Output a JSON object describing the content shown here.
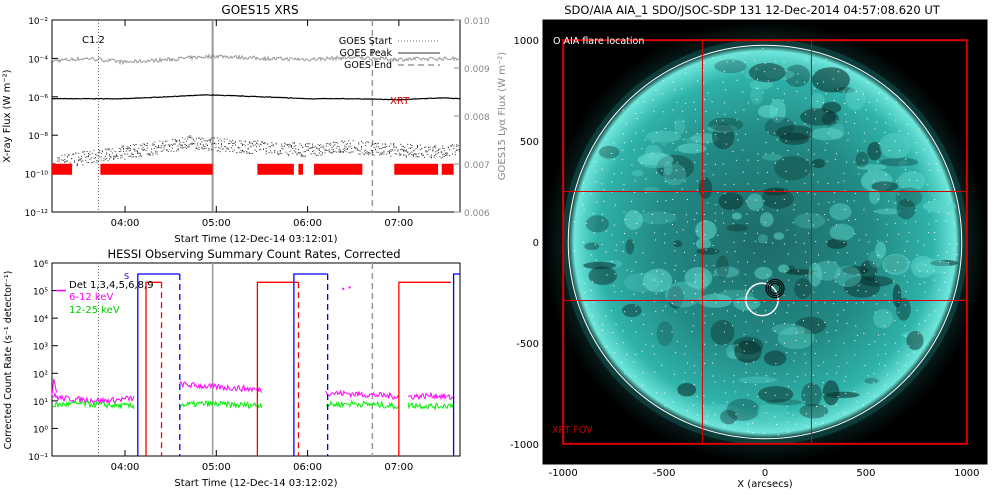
{
  "goes_panel": {
    "title": "GOES15 XRS",
    "y_label_left": "X-ray Flux (W m⁻²)",
    "y_label_right": "GOES15 Lyα Flux (W m⁻²)",
    "x_label": "Start Time (12-Dec-14 03:12:01)",
    "class_label": "C1.2",
    "legend": [
      "GOES Start",
      "GOES Peak",
      "GOES End"
    ],
    "xrt_label": "XRT"
  },
  "hessi_panel": {
    "title": "HESSI Observing Summary Count Rates, Corrected",
    "y_label": "Corrected Count Rate (s⁻¹ detector⁻¹)",
    "x_label": "Start Time (12-Dec-14 03:12:02)",
    "det_label": "Det 1,3,4,5,6,8,9",
    "legend": [
      "6-12 keV",
      "12-25 keV"
    ],
    "marker_s": "S"
  },
  "aia_panel": {
    "title": "SDO/AIA AIA_1 SDO/JSOC-SDP 131 12-Dec-2014 04:57:08.620 UT",
    "flare_legend": "O AIA flare location",
    "xrt_fov": "XRT FOV",
    "x_label": "X (arcsecs)"
  },
  "chart_data": [
    {
      "type": "line",
      "id": "goes",
      "x_ticks": [
        "04:00",
        "05:00",
        "06:00",
        "07:00"
      ],
      "x_tick_hours": [
        4,
        5,
        6,
        7
      ],
      "xlim_hours": [
        3.2,
        7.67
      ],
      "y_ticks": [
        "10⁻²",
        "10⁻⁴",
        "10⁻⁶",
        "10⁻⁸",
        "10⁻¹⁰",
        "10⁻¹²"
      ],
      "ylim_log": [
        -12,
        -2
      ],
      "y2_ticks": [
        "0.010",
        "0.009",
        "0.008",
        "0.007",
        "0.006"
      ],
      "y2lim": [
        0.006,
        0.01
      ],
      "series": [
        {
          "name": "",
          "color": "#000000",
          "x": [
            3.2,
            4.0,
            4.9,
            5.5,
            6.0,
            6.5,
            7.0,
            7.5,
            7.67
          ],
          "log_y": [
            -6.1,
            -6.1,
            -5.9,
            -6.0,
            -6.1,
            -6.1,
            -6.15,
            -6.05,
            -6.1
          ]
        },
        {
          "name": "",
          "color": "#999999",
          "axis": "right",
          "x": [
            3.2,
            3.6,
            4.0,
            4.5,
            5.0,
            5.5,
            6.0,
            6.5,
            7.0,
            7.67
          ],
          "y": [
            0.00915,
            0.0092,
            0.00912,
            0.00918,
            0.00925,
            0.0092,
            0.00918,
            0.00922,
            0.00918,
            0.0092
          ]
        },
        {
          "name": "",
          "color": "#333333",
          "x": [
            3.2,
            3.7,
            4.2,
            4.7,
            5.2,
            5.6,
            6.0,
            6.4,
            6.9,
            7.4,
            7.67
          ],
          "log_y": [
            -9.1,
            -8.7,
            -8.4,
            -8.0,
            -8.2,
            -8.3,
            -8.4,
            -8.2,
            -8.4,
            -8.5,
            -8.4
          ]
        }
      ],
      "goes_start_hour": 3.71,
      "goes_peak_hour": 4.96,
      "goes_end_hour": 6.71,
      "xrt_intervals": [
        [
          3.2,
          3.42
        ],
        [
          3.73,
          4.96
        ],
        [
          5.45,
          5.85
        ],
        [
          5.9,
          5.95
        ],
        [
          6.07,
          6.6
        ],
        [
          6.95,
          7.43
        ],
        [
          7.47,
          7.6
        ]
      ],
      "xrt_log_y": -9.8
    },
    {
      "type": "line",
      "id": "hessi",
      "x_ticks": [
        "04:00",
        "05:00",
        "06:00",
        "07:00"
      ],
      "x_tick_hours": [
        4,
        5,
        6,
        7
      ],
      "xlim_hours": [
        3.2,
        7.67
      ],
      "y_ticks": [
        "10⁶",
        "10⁵",
        "10⁴",
        "10³",
        "10²",
        "10¹",
        "10⁰",
        "10⁻¹"
      ],
      "ylim_log": [
        -1,
        6
      ],
      "series": [
        {
          "name": "6-12 keV",
          "color": "#ff00ff",
          "segments": [
            {
              "x": [
                3.2,
                3.3,
                3.5,
                3.8,
                4.1
              ],
              "log_y": [
                1.2,
                1.1,
                1.05,
                1.0,
                1.1
              ]
            },
            {
              "x": [
                4.6,
                4.8,
                5.0,
                5.3,
                5.5
              ],
              "log_y": [
                1.6,
                1.55,
                1.5,
                1.45,
                1.4
              ]
            },
            {
              "x": [
                6.2,
                6.5,
                6.8,
                7.0
              ],
              "log_y": [
                1.3,
                1.25,
                1.2,
                1.15
              ]
            },
            {
              "x": [
                7.1,
                7.4,
                7.6
              ],
              "log_y": [
                1.15,
                1.2,
                1.1
              ]
            }
          ]
        },
        {
          "name": "12-25 keV",
          "color": "#00ee00",
          "segments": [
            {
              "x": [
                3.2,
                3.5,
                3.8,
                4.1
              ],
              "log_y": [
                0.85,
                0.9,
                0.85,
                0.8
              ]
            },
            {
              "x": [
                4.6,
                4.9,
                5.2,
                5.5
              ],
              "log_y": [
                0.85,
                0.9,
                0.85,
                0.85
              ]
            },
            {
              "x": [
                6.2,
                6.5,
                6.8,
                7.0
              ],
              "log_y": [
                0.85,
                0.9,
                0.85,
                0.8
              ]
            },
            {
              "x": [
                7.1,
                7.4,
                7.6
              ],
              "log_y": [
                0.85,
                0.8,
                0.85
              ]
            }
          ]
        }
      ],
      "red_steps": [
        [
          4.23,
          4.4
        ],
        [
          5.45,
          5.9
        ],
        [
          7.0,
          7.57
        ]
      ],
      "blue_steps": [
        [
          4.14,
          4.6
        ],
        [
          5.85,
          6.22
        ],
        [
          7.6,
          7.67
        ]
      ],
      "dashed_red_hours": [
        4.4,
        5.9
      ],
      "dashed_blue_hours": [
        4.6,
        6.22
      ],
      "red_level_log": 5.3,
      "blue_level_log": 5.6
    },
    {
      "type": "scatter",
      "id": "aia",
      "x_ticks": [
        "-1000",
        "-500",
        "0",
        "500",
        "1000"
      ],
      "y_ticks": [
        "1000",
        "500",
        "0",
        "-500",
        "-1000"
      ],
      "xlim": [
        -1100,
        1100
      ],
      "ylim": [
        -1100,
        1100
      ],
      "solar_radius_arcsec": 975,
      "flare_location": [
        20,
        -250
      ],
      "flare_ring_radius": 80,
      "xrt_fov": {
        "x": [
          -1000,
          1000
        ],
        "y": [
          -1000,
          1000
        ]
      },
      "xrt_grid_x": [
        -310,
        230
      ],
      "xrt_grid_y": [
        250,
        -290
      ]
    }
  ]
}
